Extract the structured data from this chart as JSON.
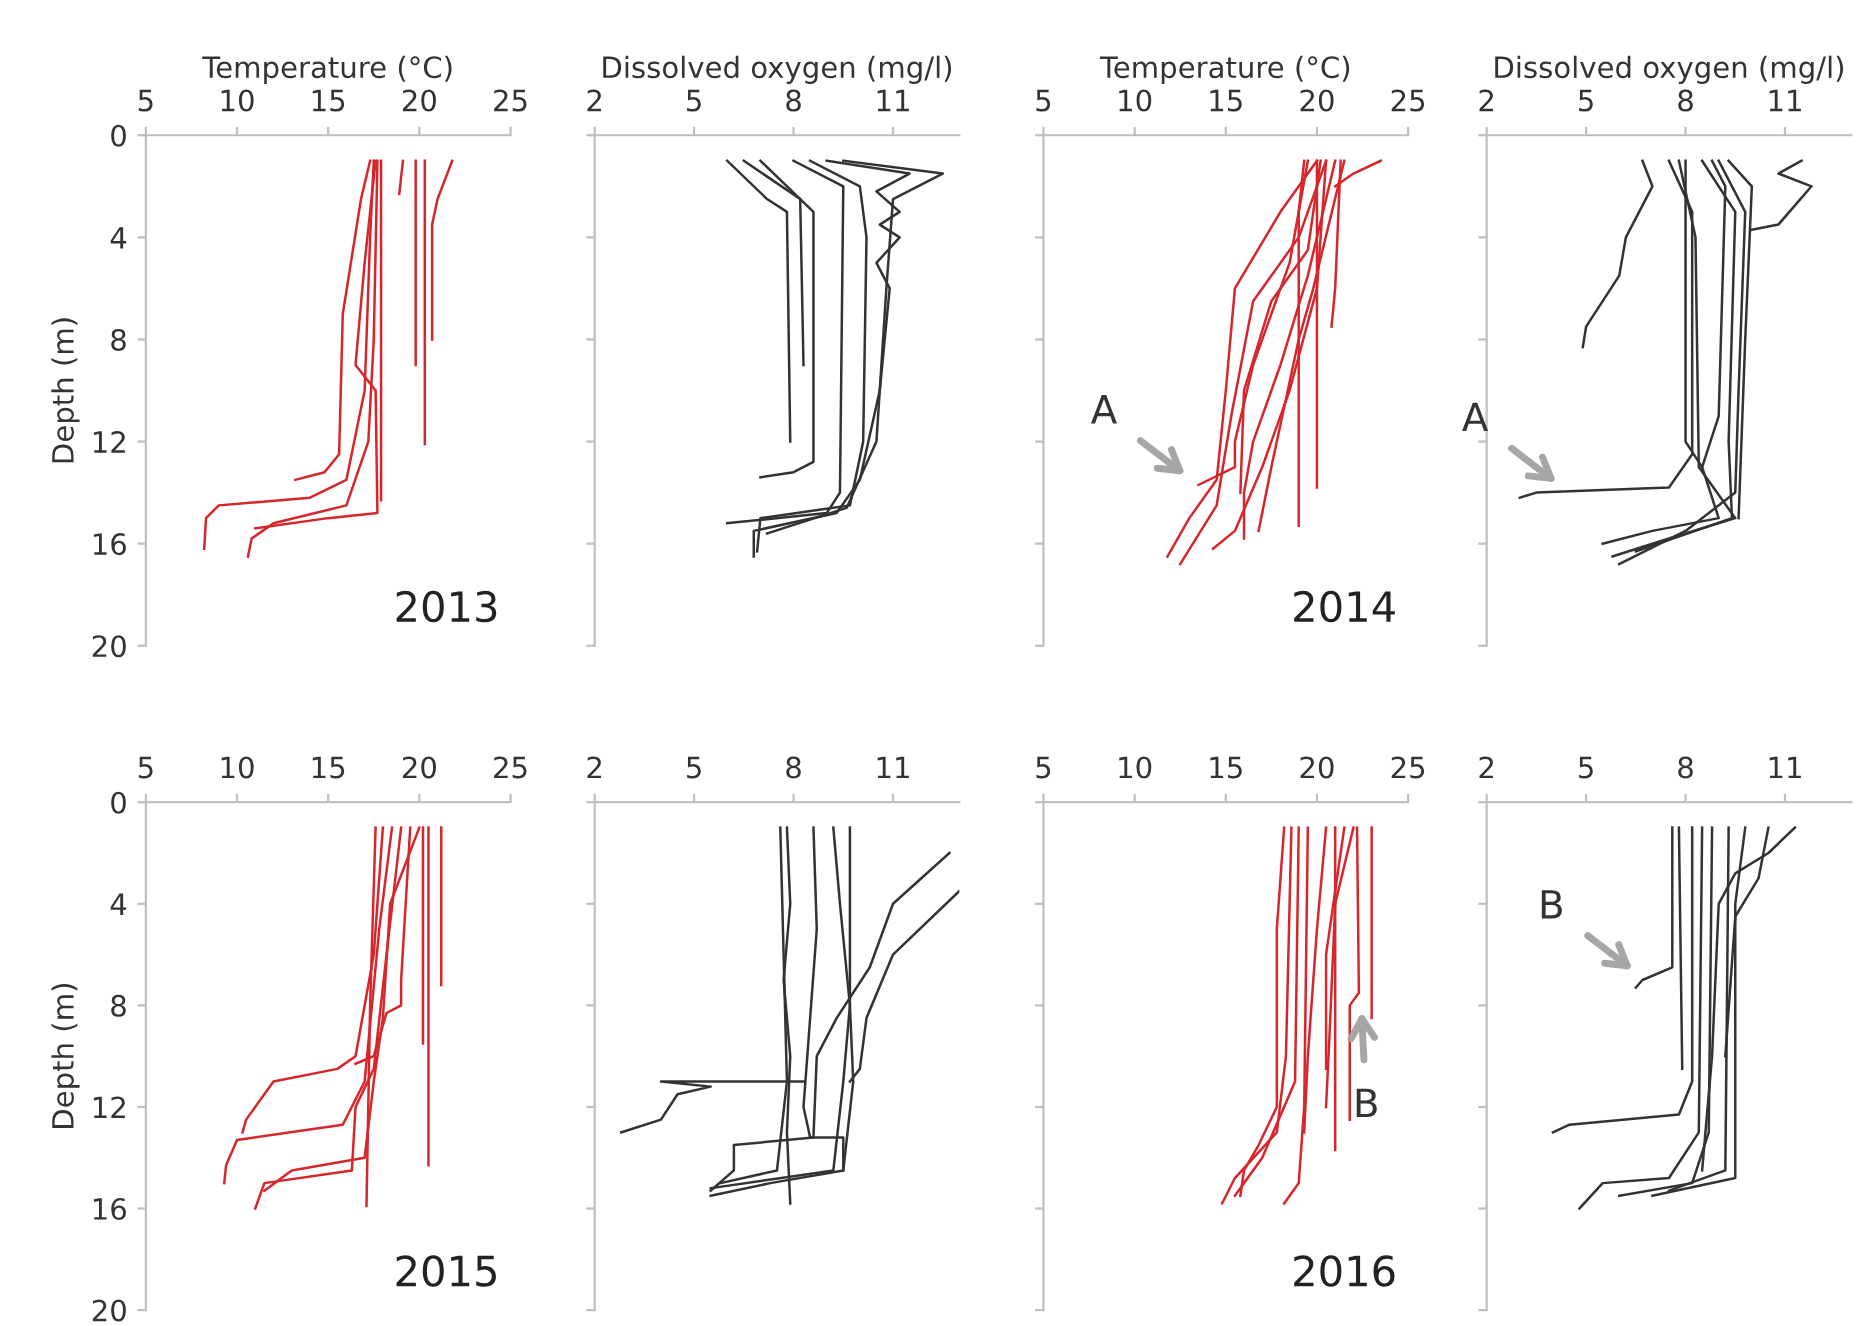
{
  "chart_data": [
    {
      "type": "line",
      "xlabel": "Temperature (°C)",
      "ylabel": "Depth (m)",
      "xlim": [
        5,
        25
      ],
      "xticks": [
        5,
        10,
        15,
        20,
        25
      ],
      "ylim": [
        20,
        0
      ],
      "yticks": [
        0,
        4,
        8,
        12,
        16,
        20
      ],
      "annotations": [
        "2013"
      ],
      "series": [
        {
          "color": "#d7262b",
          "x": [
            17.5,
            17.3,
            17,
            16,
            14,
            9,
            8.3,
            8.2
          ],
          "values": [
            1,
            4,
            10,
            13.5,
            14.2,
            14.5,
            15,
            16.2
          ]
        },
        {
          "color": "#d7262b",
          "x": [
            17.7,
            17.5,
            17.2,
            16,
            12,
            10.8,
            10.6
          ],
          "values": [
            1,
            8,
            12,
            14.5,
            15.2,
            15.8,
            16.5
          ]
        },
        {
          "color": "#d7262b",
          "x": [
            17.3,
            16.8,
            15.8,
            15.6,
            14.8,
            13.2
          ],
          "values": [
            1,
            2.5,
            7,
            12.5,
            13.2,
            13.5
          ]
        },
        {
          "color": "#d7262b",
          "x": [
            17.6,
            17,
            16.5,
            17.6,
            17.7,
            15,
            11
          ],
          "values": [
            1,
            5,
            9,
            10,
            14.8,
            15,
            15.4
          ]
        },
        {
          "color": "#d7262b",
          "x": [
            17.9,
            17.9
          ],
          "values": [
            1,
            14.3
          ]
        },
        {
          "color": "#d7262b",
          "x": [
            19.1,
            18.9
          ],
          "values": [
            1,
            2.3
          ]
        },
        {
          "color": "#d7262b",
          "x": [
            19.8,
            19.8
          ],
          "values": [
            1,
            9
          ]
        },
        {
          "color": "#d7262b",
          "x": [
            20.3,
            20.3
          ],
          "values": [
            1,
            12.1
          ]
        },
        {
          "color": "#d7262b",
          "x": [
            21.8,
            21,
            20.7,
            20.7
          ],
          "values": [
            1,
            2.5,
            3.5,
            8
          ]
        }
      ]
    },
    {
      "type": "line",
      "xlabel": "Dissolved oxygen (mg/l)",
      "xlim": [
        2,
        13
      ],
      "xticks": [
        2,
        5,
        8,
        11
      ],
      "ylim": [
        20,
        0
      ],
      "yticks": [
        0,
        4,
        8,
        12,
        16,
        20
      ],
      "tick_labels": "x",
      "series": [
        {
          "color": "#333333",
          "x": [
            6,
            7.2,
            7.8,
            7.9
          ],
          "values": [
            1,
            2.5,
            3,
            12
          ]
        },
        {
          "color": "#333333",
          "x": [
            6.5,
            8.2,
            8.3
          ],
          "values": [
            1,
            2.5,
            9
          ]
        },
        {
          "color": "#333333",
          "x": [
            7,
            8.6,
            8.6,
            8,
            7
          ],
          "values": [
            1,
            3,
            12.8,
            13.2,
            13.4
          ]
        },
        {
          "color": "#333333",
          "x": [
            8,
            9.5,
            9.4,
            9,
            6
          ],
          "values": [
            1,
            2,
            14,
            14.8,
            15.2
          ]
        },
        {
          "color": "#333333",
          "x": [
            8.5,
            10,
            10.2,
            10.1,
            9.7,
            7,
            6.9
          ],
          "values": [
            1,
            2,
            4,
            12,
            14.5,
            15,
            16.3
          ]
        },
        {
          "color": "#333333",
          "x": [
            9,
            11.5,
            10.5,
            11.2,
            10.6,
            11.2,
            10.5,
            10.9,
            10.6,
            10,
            9.3,
            6.8,
            6.8
          ],
          "values": [
            1,
            1.5,
            2.2,
            3,
            3.5,
            4,
            5,
            6,
            10,
            13.5,
            14.8,
            15.5,
            16.5
          ]
        },
        {
          "color": "#333333",
          "x": [
            9.5,
            12.5,
            11,
            10.8,
            10.5,
            9.6,
            7.2
          ],
          "values": [
            1,
            1.5,
            2.5,
            6,
            12,
            14.6,
            15.6
          ]
        }
      ]
    },
    {
      "type": "line",
      "xlabel": "Temperature (°C)",
      "xlim": [
        5,
        25
      ],
      "xticks": [
        5,
        10,
        15,
        20,
        25
      ],
      "ylim": [
        20,
        0
      ],
      "yticks": [
        0,
        4,
        8,
        12,
        16,
        20
      ],
      "tick_labels": "x",
      "annotations": [
        "2014",
        {
          "text": "A",
          "x": 13.5,
          "y": 13.7
        }
      ],
      "series": [
        {
          "color": "#d7262b",
          "x": [
            20,
            18,
            15.5,
            15,
            14.5,
            13,
            11.8
          ],
          "values": [
            1,
            3,
            6,
            10,
            13.5,
            15,
            16.5
          ]
        },
        {
          "color": "#d7262b",
          "x": [
            20.5,
            19,
            16.5,
            15.3,
            14.5,
            12.5
          ],
          "values": [
            1,
            4,
            6.5,
            11,
            14.5,
            16.8
          ]
        },
        {
          "color": "#d7262b",
          "x": [
            19.5,
            18.5,
            16.5,
            15.5,
            15.5,
            13.5
          ],
          "values": [
            1,
            5,
            9,
            12,
            13,
            13.7
          ]
        },
        {
          "color": "#d7262b",
          "x": [
            20.2,
            19.5,
            17.5,
            16,
            15.8
          ],
          "values": [
            1,
            4.5,
            6.5,
            10,
            14
          ]
        },
        {
          "color": "#d7262b",
          "x": [
            21,
            19.5,
            18,
            16.5,
            16,
            16
          ],
          "values": [
            1,
            5.5,
            9,
            12,
            14,
            15.8
          ]
        },
        {
          "color": "#d7262b",
          "x": [
            20.5,
            20,
            18.5,
            17,
            15.5,
            14.3
          ],
          "values": [
            1,
            6,
            10,
            13,
            15.5,
            16.2
          ]
        },
        {
          "color": "#d7262b",
          "x": [
            21.5,
            19.8,
            19,
            17.5,
            16.8
          ],
          "values": [
            1,
            6,
            8,
            13,
            15.5
          ]
        },
        {
          "color": "#d7262b",
          "x": [
            19.3,
            19,
            19
          ],
          "values": [
            1,
            3,
            15.3
          ]
        },
        {
          "color": "#d7262b",
          "x": [
            20,
            20
          ],
          "values": [
            1,
            13.8
          ]
        },
        {
          "color": "#d7262b",
          "x": [
            23.5,
            22,
            21
          ],
          "values": [
            1,
            1.5,
            2
          ]
        },
        {
          "color": "#d7262b",
          "x": [
            21.3,
            21,
            20.8
          ],
          "values": [
            1,
            6,
            7.5
          ]
        }
      ]
    },
    {
      "type": "line",
      "xlabel": "Dissolved oxygen (mg/l)",
      "xlim": [
        2,
        13
      ],
      "xticks": [
        2,
        5,
        8,
        11
      ],
      "ylim": [
        20,
        0
      ],
      "yticks": [
        0,
        4,
        8,
        12,
        16,
        20
      ],
      "tick_labels": "x",
      "annotations": [
        {
          "text": "A",
          "x": 4.5,
          "y": 14
        }
      ],
      "series": [
        {
          "color": "#333333",
          "x": [
            6.7,
            7,
            6.2,
            6,
            5,
            4.9
          ],
          "values": [
            1,
            2,
            4,
            5.5,
            7.5,
            8.3
          ]
        },
        {
          "color": "#333333",
          "x": [
            7.5,
            8.2,
            8.2,
            7.5,
            3.5,
            3
          ],
          "values": [
            1,
            3,
            12.5,
            13.8,
            14,
            14.2
          ]
        },
        {
          "color": "#333333",
          "x": [
            8,
            8,
            8.5,
            9,
            7,
            5.5
          ],
          "values": [
            1,
            12,
            13,
            15,
            15.5,
            16
          ]
        },
        {
          "color": "#333333",
          "x": [
            7.8,
            8.3,
            8.4,
            9.5,
            7.5,
            5.8
          ],
          "values": [
            1,
            4,
            13,
            15,
            15.8,
            16.5
          ]
        },
        {
          "color": "#333333",
          "x": [
            8.5,
            9.5,
            9.3,
            9.4,
            6.5
          ],
          "values": [
            1,
            3,
            12,
            15,
            16.3
          ]
        },
        {
          "color": "#333333",
          "x": [
            9,
            9.8,
            9.6,
            9.5,
            8,
            6
          ],
          "values": [
            1,
            3,
            10,
            14,
            15.5,
            16.8
          ]
        },
        {
          "color": "#333333",
          "x": [
            9.3,
            10,
            9.8,
            9.6
          ],
          "values": [
            1,
            2,
            8,
            15
          ]
        },
        {
          "color": "#333333",
          "x": [
            11.5,
            10.8,
            11.8,
            10.8,
            10
          ],
          "values": [
            1,
            1.5,
            2,
            3.5,
            3.7
          ]
        },
        {
          "color": "#333333",
          "x": [
            8.8,
            9.2,
            9,
            8.5
          ],
          "values": [
            1,
            2,
            11,
            13
          ]
        }
      ]
    },
    {
      "type": "line",
      "ylabel": "Depth (m)",
      "xlim": [
        5,
        25
      ],
      "xticks": [
        5,
        10,
        15,
        20,
        25
      ],
      "ylim": [
        20,
        0
      ],
      "yticks": [
        0,
        4,
        8,
        12,
        16,
        20
      ],
      "annotations": [
        "2015"
      ],
      "series": [
        {
          "color": "#d7262b",
          "x": [
            18,
            17.5,
            16.5,
            15.5,
            12,
            10.5,
            10.3
          ],
          "values": [
            1,
            6,
            10,
            10.5,
            11,
            12.5,
            13
          ]
        },
        {
          "color": "#d7262b",
          "x": [
            18.5,
            17.8,
            17,
            15.8,
            10,
            9.4,
            9.3
          ],
          "values": [
            1,
            5,
            11,
            12.7,
            13.3,
            14.3,
            15
          ]
        },
        {
          "color": "#d7262b",
          "x": [
            19,
            18.2,
            17.5,
            16.5,
            16.3,
            11.5,
            11
          ],
          "values": [
            1,
            6,
            10.5,
            12,
            14.5,
            15,
            16
          ]
        },
        {
          "color": "#d7262b",
          "x": [
            17.6,
            17.3,
            17.1
          ],
          "values": [
            1,
            8,
            15.9
          ]
        },
        {
          "color": "#d7262b",
          "x": [
            20,
            18.4,
            18,
            17.5,
            17,
            13,
            11.5
          ],
          "values": [
            1,
            4,
            8.5,
            11,
            14,
            14.5,
            15.3
          ]
        },
        {
          "color": "#d7262b",
          "x": [
            19.5,
            19,
            19,
            18.2,
            17.5,
            16.5
          ],
          "values": [
            1,
            7,
            8,
            8.3,
            10,
            10.3
          ]
        },
        {
          "color": "#d7262b",
          "x": [
            20.5,
            20.5
          ],
          "values": [
            1,
            14.3
          ]
        },
        {
          "color": "#d7262b",
          "x": [
            20.2,
            20.2
          ],
          "values": [
            1,
            9.5
          ]
        },
        {
          "color": "#d7262b",
          "x": [
            21.2,
            21.2
          ],
          "values": [
            1,
            7.2
          ]
        }
      ]
    },
    {
      "type": "line",
      "xlim": [
        2,
        13
      ],
      "xticks": [
        2,
        5,
        8,
        11
      ],
      "ylim": [
        20,
        0
      ],
      "yticks": [
        0,
        4,
        8,
        12,
        16,
        20
      ],
      "tick_labels": "x",
      "series": [
        {
          "color": "#333333",
          "x": [
            7.8,
            7.9,
            7.7,
            7.9,
            7.8,
            7.9
          ],
          "values": [
            1,
            4,
            7,
            10,
            13,
            15.8
          ]
        },
        {
          "color": "#333333",
          "x": [
            7.6,
            7.8,
            7.5,
            5.8
          ],
          "values": [
            1,
            11,
            14.5,
            15
          ]
        },
        {
          "color": "#333333",
          "x": [
            8.6,
            8.7,
            8.3,
            8.5,
            9.5,
            9.5,
            7.3,
            5.5
          ],
          "values": [
            1,
            5,
            12,
            13.2,
            13.2,
            14.5,
            15,
            15.5
          ]
        },
        {
          "color": "#333333",
          "x": [
            9.7,
            9.7,
            9.5,
            9.2,
            5.5
          ],
          "values": [
            1,
            8,
            11,
            14.5,
            15.2
          ]
        },
        {
          "color": "#333333",
          "x": [
            9.2,
            9.4,
            9.7,
            9.8,
            9.5
          ],
          "values": [
            1,
            4,
            8,
            11,
            14.5
          ]
        },
        {
          "color": "#333333",
          "x": [
            12.7,
            11,
            10.3,
            9.3,
            8.7,
            8.6,
            6.2,
            6.2,
            5.5
          ],
          "values": [
            2,
            4,
            6.5,
            8.5,
            10,
            13.2,
            13.5,
            14.5,
            15.3
          ]
        },
        {
          "color": "#333333",
          "x": [
            13,
            11,
            10.2,
            10,
            9.7
          ],
          "values": [
            3.5,
            6,
            8.5,
            10.5,
            11
          ]
        },
        {
          "color": "#333333",
          "x": [
            8.3,
            4,
            5.5,
            4.5,
            4,
            2.8
          ],
          "values": [
            11,
            11,
            11.2,
            11.5,
            12.5,
            13
          ]
        }
      ]
    },
    {
      "type": "line",
      "xlim": [
        5,
        25
      ],
      "xticks": [
        5,
        10,
        15,
        20,
        25
      ],
      "ylim": [
        20,
        0
      ],
      "yticks": [
        0,
        4,
        8,
        12,
        16,
        20
      ],
      "tick_labels": "x",
      "annotations": [
        "2016",
        {
          "text": "B",
          "x": 22.4,
          "y": 7.6
        }
      ],
      "series": [
        {
          "color": "#d7262b",
          "x": [
            18.2,
            17.8,
            17.8,
            16.8,
            16,
            15.8
          ],
          "values": [
            1,
            5,
            12,
            13.5,
            14.5,
            15.5
          ]
        },
        {
          "color": "#d7262b",
          "x": [
            18.6,
            18.3,
            17.8,
            15.5,
            14.8
          ],
          "values": [
            1,
            10,
            13,
            14.8,
            15.8
          ]
        },
        {
          "color": "#d7262b",
          "x": [
            19,
            18.8,
            17,
            15.5
          ],
          "values": [
            1,
            11,
            14,
            15.5
          ]
        },
        {
          "color": "#d7262b",
          "x": [
            19.5,
            19.3,
            19,
            18.2
          ],
          "values": [
            1,
            12,
            15,
            15.8
          ]
        },
        {
          "color": "#d7262b",
          "x": [
            20.5,
            20,
            19.5,
            19.3
          ],
          "values": [
            1,
            5,
            10,
            13
          ]
        },
        {
          "color": "#d7262b",
          "x": [
            21,
            21
          ],
          "values": [
            1,
            13.7
          ]
        },
        {
          "color": "#d7262b",
          "x": [
            22,
            21,
            20.7,
            20.5
          ],
          "values": [
            1,
            4,
            9,
            12
          ]
        },
        {
          "color": "#d7262b",
          "x": [
            22.2,
            22.3,
            21.8,
            21.8
          ],
          "values": [
            1,
            7.5,
            8,
            12.5
          ]
        },
        {
          "color": "#d7262b",
          "x": [
            23,
            23
          ],
          "values": [
            1,
            8.5
          ]
        },
        {
          "color": "#d7262b",
          "x": [
            21.5,
            20.5,
            20.5
          ],
          "values": [
            1,
            6,
            10.5
          ]
        }
      ]
    },
    {
      "type": "line",
      "xlim": [
        2,
        13
      ],
      "xticks": [
        2,
        5,
        8,
        11
      ],
      "ylim": [
        20,
        0
      ],
      "yticks": [
        0,
        4,
        8,
        12,
        16,
        20
      ],
      "tick_labels": "x",
      "annotations": [
        {
          "text": "B",
          "x": 6.8,
          "y": 7
        }
      ],
      "series": [
        {
          "color": "#333333",
          "x": [
            7.6,
            7.6,
            6.7,
            6.5
          ],
          "values": [
            1,
            6.5,
            7,
            7.3
          ]
        },
        {
          "color": "#333333",
          "x": [
            7.8,
            7.9
          ],
          "values": [
            1,
            10.5
          ]
        },
        {
          "color": "#333333",
          "x": [
            8.2,
            8.2,
            7.8,
            4.5,
            4
          ],
          "values": [
            1,
            11,
            12.3,
            12.7,
            13
          ]
        },
        {
          "color": "#333333",
          "x": [
            8.5,
            8.4,
            7.5,
            5.5,
            4.8
          ],
          "values": [
            1,
            13,
            14.8,
            15,
            16
          ]
        },
        {
          "color": "#333333",
          "x": [
            8.8,
            8.7,
            8.2,
            6
          ],
          "values": [
            1,
            13,
            15,
            15.5
          ]
        },
        {
          "color": "#333333",
          "x": [
            9.3,
            9.2,
            7.5
          ],
          "values": [
            1,
            14.5,
            15.3
          ]
        },
        {
          "color": "#333333",
          "x": [
            9.8,
            9.5,
            9.5,
            7
          ],
          "values": [
            1,
            4,
            14.8,
            15.5
          ]
        },
        {
          "color": "#333333",
          "x": [
            11.3,
            10.5,
            9.5,
            9,
            8.8,
            8.5
          ],
          "values": [
            1,
            2,
            2.8,
            4,
            10,
            14.5
          ]
        },
        {
          "color": "#333333",
          "x": [
            10.5,
            10.2,
            9.5,
            9.2
          ],
          "values": [
            1,
            3,
            4.5,
            10
          ]
        }
      ]
    }
  ]
}
